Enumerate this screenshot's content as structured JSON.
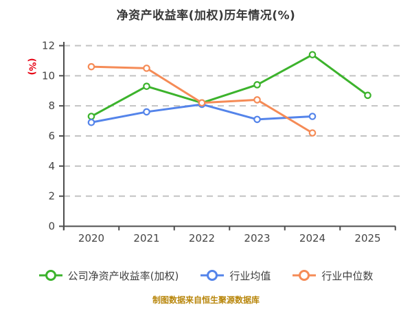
{
  "title": "净资产收益率(加权)历年情况(%)",
  "footer_note": "制图数据来自恒生聚源数据库",
  "colors": {
    "background": "#ffffff",
    "title_text": "#383838",
    "axis_line": "#4d4d4d",
    "tick_label": "#454545",
    "gridline": "#c2c2c2",
    "ylabel_red": "#e60012",
    "footer_text": "#b8860b",
    "legend_text": "#3f3f3f",
    "series_green": "#3cb32c",
    "series_blue": "#5484ea",
    "series_orange": "#f58b56"
  },
  "chart_data": {
    "type": "line",
    "title": "净资产收益率(加权)历年情况(%)",
    "xlabel": "",
    "ylabel": "(%)",
    "categories": [
      "2020",
      "2021",
      "2022",
      "2023",
      "2024",
      "2025"
    ],
    "yticks": [
      0,
      2,
      4,
      6,
      8,
      10,
      12
    ],
    "ylim": [
      0,
      12
    ],
    "grid": "horizontal-dashed",
    "legend_position": "bottom",
    "marker": "circle-white-fill",
    "series": [
      {
        "name": "公司净资产收益率(加权)",
        "color": "#3cb32c",
        "values": [
          7.3,
          9.3,
          8.2,
          9.4,
          11.4,
          8.7
        ]
      },
      {
        "name": "行业均值",
        "color": "#5484ea",
        "values": [
          6.9,
          7.6,
          8.1,
          7.1,
          7.3
        ]
      },
      {
        "name": "行业中位数",
        "color": "#f58b56",
        "values": [
          10.6,
          10.5,
          8.2,
          8.4,
          6.2
        ]
      }
    ]
  },
  "legend": {
    "items": [
      {
        "label": "公司净资产收益率(加权)"
      },
      {
        "label": "行业均值"
      },
      {
        "label": "行业中位数"
      }
    ]
  }
}
